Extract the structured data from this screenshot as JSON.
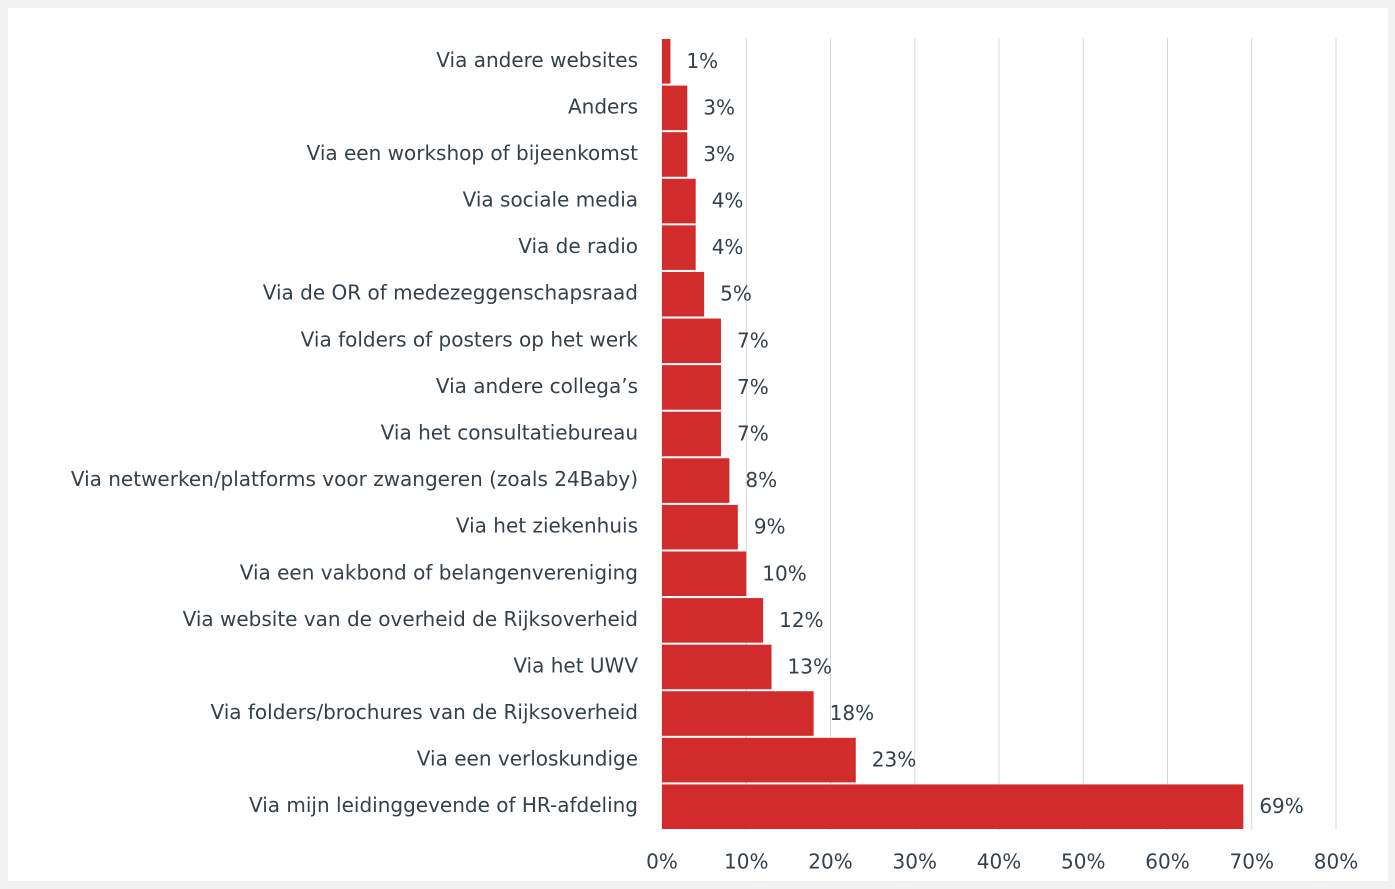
{
  "chart_data": {
    "type": "barh",
    "categories": [
      "Via andere websites",
      "Anders",
      "Via een workshop of bijeenkomst",
      "Via sociale media",
      "Via de radio",
      "Via de OR of medezeggenschapsraad",
      "Via folders of posters op het werk",
      "Via andere collega’s",
      "Via het consultatiebureau",
      "Via netwerken/platforms voor zwangeren (zoals 24Baby)",
      "Via het ziekenhuis",
      "Via een vakbond of belangenvereniging",
      "Via website van de overheid de Rijksoverheid",
      "Via het UWV",
      "Via folders/brochures van de Rijksoverheid",
      "Via een verloskundige",
      "Via mijn leidinggevende of HR-afdeling"
    ],
    "values": [
      1,
      3,
      3,
      4,
      4,
      5,
      7,
      7,
      7,
      8,
      9,
      10,
      12,
      13,
      18,
      23,
      69
    ],
    "value_labels": [
      "1%",
      "3%",
      "3%",
      "4%",
      "4%",
      "5%",
      "7%",
      "7%",
      "7%",
      "8%",
      "9%",
      "10%",
      "12%",
      "13%",
      "18%",
      "23%",
      "69%"
    ],
    "color": "#d22b2b",
    "xlim": [
      0,
      80
    ],
    "xticks": [
      {
        "value": 0,
        "label": "0%"
      },
      {
        "value": 10,
        "label": "10%"
      },
      {
        "value": 20,
        "label": "20%"
      },
      {
        "value": 30,
        "label": "30%"
      },
      {
        "value": 40,
        "label": "40%"
      },
      {
        "value": 50,
        "label": "50%"
      },
      {
        "value": 60,
        "label": "60%"
      },
      {
        "value": 70,
        "label": "70%"
      },
      {
        "value": 80,
        "label": "80%"
      }
    ],
    "grid": true
  }
}
